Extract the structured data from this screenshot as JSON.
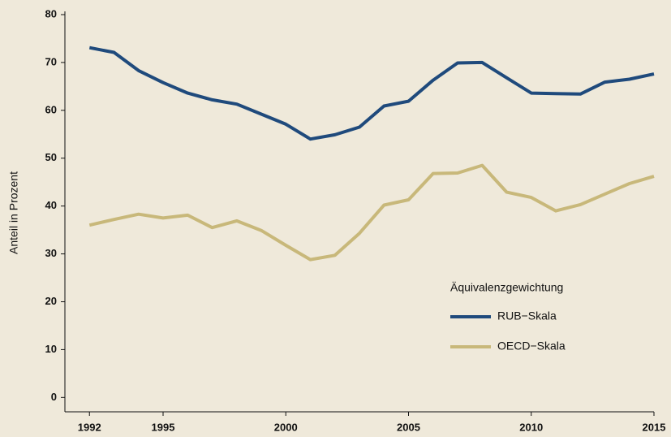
{
  "chart_data": {
    "type": "line",
    "y_label": "Anteil in Prozent",
    "legend_title": "Äquivalenzgewichtung",
    "x": [
      1992,
      1993,
      1994,
      1995,
      1996,
      1997,
      1998,
      1999,
      2000,
      2001,
      2002,
      2003,
      2004,
      2005,
      2006,
      2007,
      2008,
      2009,
      2010,
      2011,
      2012,
      2013,
      2014,
      2015
    ],
    "series": [
      {
        "name": "RUB−Skala",
        "color": "#1f4a7c",
        "values": [
          73.1,
          72.1,
          68.3,
          65.8,
          63.6,
          62.2,
          61.3,
          59.2,
          57.1,
          54.0,
          54.9,
          56.5,
          60.9,
          61.9,
          66.3,
          69.9,
          70.0,
          66.8,
          63.6,
          63.5,
          63.4,
          65.9,
          66.5,
          67.6
        ]
      },
      {
        "name": "OECD−Skala",
        "color": "#c8b87a",
        "values": [
          36.0,
          37.2,
          38.3,
          37.5,
          38.1,
          35.5,
          36.9,
          34.9,
          31.8,
          28.8,
          29.7,
          34.3,
          40.2,
          41.3,
          46.8,
          46.9,
          48.5,
          42.9,
          41.8,
          39.0,
          40.3,
          42.5,
          44.7,
          46.2
        ]
      }
    ],
    "xlim": [
      1991,
      2015
    ],
    "xticks": [
      1992,
      1995,
      2000,
      2005,
      2010,
      2015
    ],
    "ylim": [
      -3,
      80
    ],
    "yticks": [
      0,
      10,
      20,
      30,
      40,
      50,
      60,
      70,
      80
    ],
    "legend": "lower right"
  }
}
